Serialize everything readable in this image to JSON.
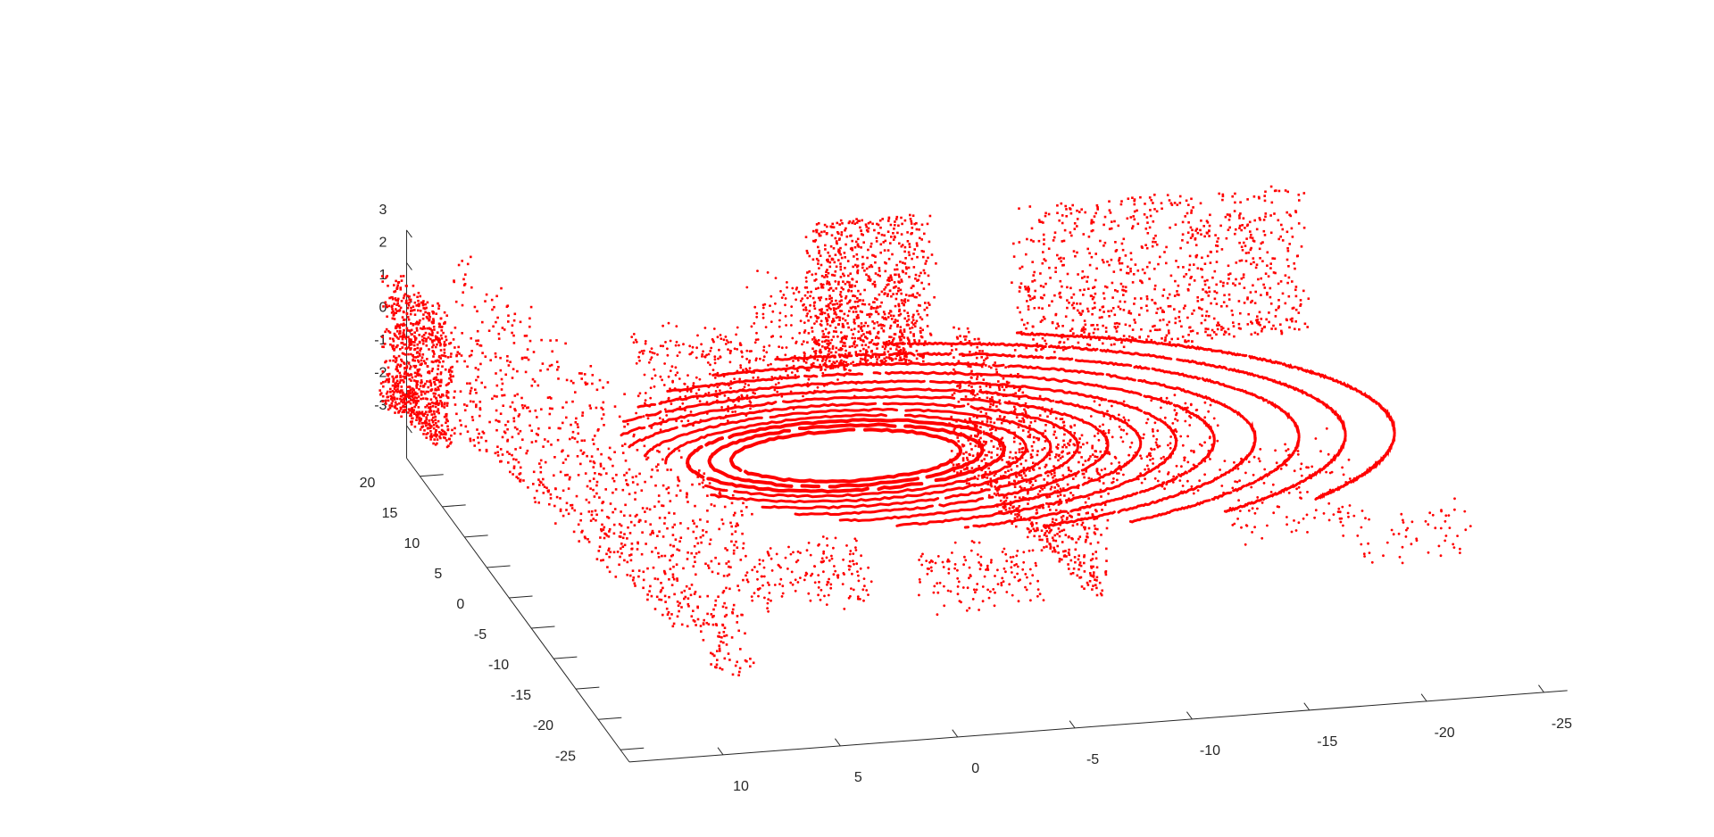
{
  "chart_data": {
    "type": "scatter",
    "projection": "3d",
    "title": "",
    "xlabel": "",
    "ylabel": "",
    "zlabel": "",
    "grid": false,
    "legend": "none",
    "marker_color": "#ff0000",
    "axis_color": "#262626",
    "background": "#ffffff",
    "xlim": [
      -26,
      14
    ],
    "ylim": [
      -27,
      23
    ],
    "zlim": [
      -4,
      3
    ],
    "x_ticks": [
      "10",
      "5",
      "0",
      "-5",
      "-10",
      "-15",
      "-20",
      "-25"
    ],
    "x_tick_values": [
      10,
      5,
      0,
      -5,
      -10,
      -15,
      -20,
      -25
    ],
    "y_ticks": [
      "-25",
      "-20",
      "-15",
      "-10",
      "-5",
      "0",
      "5",
      "10",
      "15",
      "20"
    ],
    "y_tick_values": [
      -25,
      -20,
      -15,
      -10,
      -5,
      0,
      5,
      10,
      15,
      20
    ],
    "z_ticks": [
      "3",
      "2",
      "1",
      "0",
      "-1",
      "-2",
      "-3"
    ],
    "z_tick_values": [
      3,
      2,
      1,
      0,
      -1,
      -2,
      -3
    ],
    "series": [
      {
        "values_description_omitted": false,
        "ground_rings": [
          {
            "r": 4.2,
            "start_deg": 0,
            "end_deg": 360
          },
          {
            "r": 5.0,
            "start_deg": 0,
            "end_deg": 360
          },
          {
            "r": 5.8,
            "start_deg": 0,
            "end_deg": 360
          },
          {
            "r": 6.6,
            "start_deg": 10,
            "end_deg": 330
          },
          {
            "r": 7.5,
            "start_deg": 20,
            "end_deg": 320
          },
          {
            "r": 8.5,
            "start_deg": 30,
            "end_deg": 300
          },
          {
            "r": 9.6,
            "start_deg": 40,
            "end_deg": 290
          },
          {
            "r": 10.8,
            "start_deg": 50,
            "end_deg": 280
          },
          {
            "r": 12.1,
            "start_deg": 60,
            "end_deg": 270
          },
          {
            "r": 13.5,
            "start_deg": 70,
            "end_deg": 260
          },
          {
            "r": 15.0,
            "start_deg": 80,
            "end_deg": 250
          },
          {
            "r": 16.6,
            "start_deg": 90,
            "end_deg": 240
          },
          {
            "r": 18.3,
            "start_deg": 100,
            "end_deg": 230
          },
          {
            "r": 20.1,
            "start_deg": 110,
            "end_deg": 220
          }
        ],
        "walls": [
          {
            "x0": 12,
            "y0": 22,
            "x1": 8,
            "y1": -22,
            "zmin": -3,
            "zmax": 2.5
          },
          {
            "x0": -7,
            "y0": 10,
            "x1": -9,
            "y1": -12,
            "zmin": -3,
            "zmax": 1.5
          },
          {
            "x0": -3,
            "y0": 22,
            "x1": -8,
            "y1": 22,
            "zmin": -2,
            "zmax": 2.5
          },
          {
            "x0": -12,
            "y0": 22,
            "x1": -24,
            "y1": 22,
            "zmin": -2,
            "zmax": 2.5
          },
          {
            "x0": 15,
            "y0": 22,
            "x1": 14,
            "y1": 14,
            "zmin": -2,
            "zmax": 2
          }
        ]
      }
    ]
  }
}
